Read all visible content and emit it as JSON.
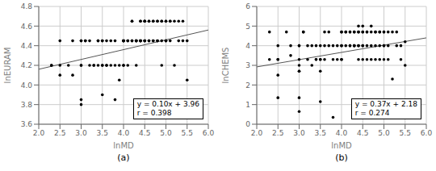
{
  "chart_data": [
    {
      "type": "scatter",
      "title": "(a)",
      "x_label": "lnMD",
      "y_label": "lnEURAM",
      "xlim": [
        2,
        6
      ],
      "ylim": [
        3.6,
        4.8
      ],
      "xticks": [
        {
          "value": 2,
          "label": "2.0"
        },
        2.5,
        {
          "value": 3,
          "label": "3.0"
        },
        3.5,
        {
          "value": 4,
          "label": "4.0"
        },
        4.5,
        {
          "value": 5,
          "label": "5.0"
        },
        5.5,
        {
          "value": 6,
          "label": "6.0"
        }
      ],
      "yticks": [
        3.6,
        3.8,
        {
          "value": 4,
          "label": "4.0"
        },
        4.2,
        4.4,
        4.6,
        4.8
      ],
      "grid": true,
      "annotations": [
        "y = 0.10x + 3.96\nr = 0.398"
      ],
      "series": [
        {
          "type": "scatter",
          "color": "#000000",
          "x": [
            2.3,
            2.3,
            2.5,
            2.5,
            2.5,
            2.7,
            2.8,
            2.8,
            3.0,
            3.0,
            3.0,
            3.0,
            3.0,
            3.0,
            3.1,
            3.1,
            3.2,
            3.2,
            3.3,
            3.3,
            3.4,
            3.4,
            3.4,
            3.5,
            3.5,
            3.5,
            3.5,
            3.5,
            3.6,
            3.6,
            3.6,
            3.7,
            3.7,
            3.8,
            3.8,
            3.8,
            3.9,
            3.9,
            4.0,
            4.0,
            4.0,
            4.0,
            4.0,
            4.0,
            4.1,
            4.1,
            4.1,
            4.2,
            4.2,
            4.2,
            4.2,
            4.3,
            4.3,
            4.3,
            4.3,
            4.3,
            4.4,
            4.4,
            4.4,
            4.4,
            4.4,
            4.4,
            4.5,
            4.5,
            4.5,
            4.5,
            4.5,
            4.5,
            4.6,
            4.6,
            4.6,
            4.6,
            4.7,
            4.7,
            4.7,
            4.7,
            4.8,
            4.8,
            4.8,
            4.8,
            4.9,
            4.9,
            4.9,
            4.9,
            5.0,
            5.0,
            5.0,
            5.0,
            5.0,
            5.1,
            5.1,
            5.1,
            5.2,
            5.2,
            5.3,
            5.3,
            5.4,
            5.4,
            5.5,
            5.5
          ],
          "values": [
            4.2,
            4.2,
            4.45,
            4.2,
            4.1,
            4.2,
            4.45,
            4.1,
            4.45,
            4.45,
            4.2,
            4.2,
            3.85,
            3.8,
            4.45,
            4.45,
            4.45,
            4.2,
            4.2,
            4.2,
            4.45,
            4.45,
            4.2,
            4.45,
            4.45,
            4.2,
            4.2,
            3.9,
            4.45,
            4.2,
            4.2,
            4.45,
            4.2,
            4.45,
            4.2,
            3.85,
            4.2,
            4.05,
            4.45,
            4.45,
            4.45,
            4.45,
            4.2,
            4.2,
            4.45,
            4.45,
            4.2,
            4.65,
            4.65,
            4.45,
            4.45,
            4.45,
            4.45,
            4.45,
            4.45,
            4.2,
            4.65,
            4.65,
            4.45,
            4.45,
            4.45,
            4.45,
            4.65,
            4.65,
            4.65,
            4.45,
            4.45,
            4.45,
            4.65,
            4.65,
            4.45,
            4.45,
            4.65,
            4.65,
            4.45,
            4.45,
            4.65,
            4.65,
            4.45,
            4.45,
            4.65,
            4.65,
            4.45,
            4.2,
            4.65,
            4.65,
            4.45,
            4.45,
            4.45,
            4.65,
            4.65,
            4.45,
            4.65,
            4.2,
            4.65,
            4.45,
            4.65,
            4.45,
            4.45,
            4.05
          ]
        },
        {
          "type": "line",
          "color": "#555555",
          "x": [
            2,
            6
          ],
          "values": [
            4.16,
            4.56
          ]
        }
      ]
    },
    {
      "type": "scatter",
      "title": "(b)",
      "x_label": "lnMD",
      "y_label": "lnCHEMS",
      "xlim": [
        2,
        6
      ],
      "ylim": [
        0,
        6
      ],
      "xticks": [
        {
          "value": 2,
          "label": "2.0"
        },
        2.5,
        {
          "value": 3,
          "label": "3.0"
        },
        3.5,
        {
          "value": 4,
          "label": "4.0"
        },
        4.5,
        {
          "value": 5,
          "label": "5.0"
        },
        5.5,
        {
          "value": 6,
          "label": "6.0"
        }
      ],
      "yticks": [
        0,
        1,
        2,
        3,
        4,
        5,
        6
      ],
      "grid": true,
      "annotations": [
        "y = 0.37x + 2.18\nr = 0.274"
      ],
      "series": [
        {
          "type": "scatter",
          "color": "#000000",
          "x": [
            2.3,
            2.3,
            2.5,
            2.5,
            2.5,
            2.5,
            2.5,
            2.7,
            2.8,
            2.8,
            3.0,
            3.0,
            3.0,
            3.0,
            3.0,
            3.0,
            3.0,
            3.0,
            3.1,
            3.1,
            3.2,
            3.2,
            3.3,
            3.3,
            3.4,
            3.4,
            3.4,
            3.5,
            3.5,
            3.5,
            3.5,
            3.5,
            3.6,
            3.6,
            3.6,
            3.7,
            3.7,
            3.8,
            3.8,
            3.8,
            3.9,
            3.9,
            4.0,
            4.0,
            4.0,
            4.0,
            4.0,
            4.0,
            4.1,
            4.1,
            4.1,
            4.2,
            4.2,
            4.2,
            4.2,
            4.3,
            4.3,
            4.3,
            4.3,
            4.3,
            4.4,
            4.4,
            4.4,
            4.4,
            4.4,
            4.4,
            4.5,
            4.5,
            4.5,
            4.5,
            4.5,
            4.5,
            4.6,
            4.6,
            4.6,
            4.6,
            4.7,
            4.7,
            4.7,
            4.7,
            4.8,
            4.8,
            4.8,
            4.8,
            4.9,
            4.9,
            4.9,
            4.9,
            5.0,
            5.0,
            5.0,
            5.0,
            5.0,
            5.1,
            5.1,
            5.1,
            5.2,
            5.2,
            5.3,
            5.3,
            5.4,
            5.4,
            5.5,
            5.5
          ],
          "values": [
            4.7,
            3.3,
            4.0,
            3.3,
            3.3,
            2.5,
            1.35,
            4.7,
            4.0,
            3.5,
            4.0,
            4.0,
            3.3,
            3.0,
            2.7,
            2.7,
            1.35,
            0.65,
            4.7,
            4.7,
            4.0,
            3.3,
            4.0,
            3.0,
            4.0,
            3.3,
            3.3,
            4.0,
            3.3,
            3.3,
            2.7,
            1.15,
            4.7,
            4.0,
            3.3,
            4.7,
            4.0,
            4.0,
            3.3,
            0.35,
            4.0,
            3.3,
            4.7,
            4.7,
            4.0,
            4.0,
            3.3,
            3.3,
            4.7,
            4.7,
            4.0,
            4.7,
            4.7,
            4.0,
            4.0,
            4.7,
            4.7,
            4.0,
            4.0,
            4.0,
            5.0,
            4.7,
            4.7,
            4.0,
            4.0,
            3.3,
            5.0,
            4.7,
            4.7,
            4.0,
            4.0,
            3.3,
            4.7,
            4.7,
            4.0,
            3.3,
            5.0,
            4.7,
            4.0,
            3.3,
            4.7,
            4.7,
            4.0,
            3.3,
            4.7,
            4.7,
            4.0,
            3.3,
            4.7,
            4.7,
            4.0,
            4.0,
            3.3,
            4.7,
            4.0,
            3.3,
            4.7,
            2.3,
            4.7,
            4.0,
            4.0,
            3.3,
            4.2,
            3.0
          ]
        },
        {
          "type": "line",
          "color": "#555555",
          "x": [
            2,
            6
          ],
          "values": [
            2.92,
            4.4
          ]
        }
      ]
    }
  ]
}
